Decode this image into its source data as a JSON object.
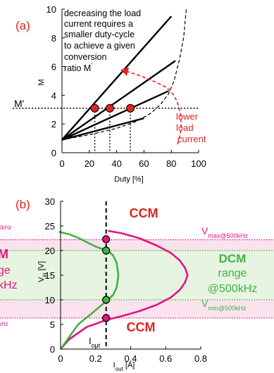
{
  "chart_data": [
    {
      "type": "line",
      "panel_label": "(a)",
      "xlabel": "Duty [%]",
      "ylabel": "M",
      "xlim": [
        0,
        100
      ],
      "ylim": [
        0,
        10
      ],
      "xticks": [
        0,
        20,
        40,
        60,
        80,
        100
      ],
      "yticks": [
        0,
        2,
        4,
        6,
        8,
        10
      ],
      "grid": false,
      "series": [
        {
          "style": "solid",
          "x": [
            0,
            80
          ],
          "y": [
            0.9,
            9.5
          ]
        },
        {
          "style": "solid",
          "x": [
            0,
            83
          ],
          "y": [
            0.9,
            6.4
          ]
        },
        {
          "style": "solid",
          "x": [
            0,
            78
          ],
          "y": [
            0.9,
            4.3
          ]
        },
        {
          "style": "solid",
          "x": [
            0,
            60
          ],
          "y": [
            0.9,
            2.4
          ]
        },
        {
          "style": "dashed",
          "x": [
            0,
            20,
            40,
            55,
            65,
            72,
            78,
            82,
            86,
            89,
            91
          ],
          "y": [
            0.9,
            1.25,
            1.7,
            2.2,
            2.75,
            3.35,
            4.1,
            5.0,
            6.5,
            8.0,
            10
          ]
        }
      ],
      "reference_line": {
        "label": "M'",
        "y": 3.1
      },
      "points": [
        {
          "x": 24,
          "y": 3.1
        },
        {
          "x": 35,
          "y": 3.1
        },
        {
          "x": 50,
          "y": 3.1
        }
      ],
      "annotations": {
        "note_lines": [
          "decreasing the load",
          "current requires a",
          "smaller duty-cycle",
          "to achieve a given",
          "conversion"
        ],
        "note_last_prefix": "ratio M",
        "note_last_suffix": "'",
        "load_lines": [
          "lower",
          "load",
          "current"
        ]
      }
    },
    {
      "type": "line",
      "panel_label": "(b)",
      "xlabel_main": "I",
      "xlabel_sub": "out",
      "xlabel_unit": " [A]",
      "ylabel_main": "V",
      "ylabel_sub": "in",
      "ylabel_unit": " [V]",
      "xlim": [
        0,
        0.8
      ],
      "ylim": [
        0,
        30
      ],
      "xticks": [
        "0",
        "0.2",
        "0.4",
        "0.6",
        "0.8"
      ],
      "yticks": [
        "0",
        "5",
        "10",
        "15",
        "20",
        "25",
        "30"
      ],
      "series": [
        {
          "color": "#e0157f",
          "x": [
            0.27,
            0.35,
            0.45,
            0.55,
            0.63,
            0.68,
            0.71,
            0.725,
            0.71,
            0.68,
            0.63,
            0.55,
            0.45,
            0.35,
            0.27,
            0.15,
            0.05,
            0.0
          ],
          "y": [
            24.0,
            23.5,
            22.5,
            21.0,
            19.5,
            18.0,
            16.5,
            15.0,
            13.5,
            12.0,
            10.5,
            9.0,
            7.7,
            6.7,
            6.0,
            4.5,
            2.0,
            0.0
          ]
        },
        {
          "color": "#3fb43f",
          "x": [
            -0.01,
            0.05,
            0.1,
            0.15,
            0.2,
            0.24,
            0.27,
            0.3,
            0.32,
            0.33,
            0.32,
            0.3,
            0.27,
            0.22,
            0.17,
            0.1,
            0.04,
            0.0
          ],
          "y": [
            23.8,
            23.3,
            22.6,
            21.7,
            20.8,
            20.3,
            20.0,
            19.0,
            17.5,
            15.0,
            12.5,
            11.0,
            10.0,
            8.5,
            7.0,
            5.0,
            2.0,
            0.0
          ]
        }
      ],
      "ccm_bands": [
        {
          "y": [
            22.2,
            23.8
          ]
        },
        {
          "y": [
            6.3,
            10.0
          ]
        }
      ],
      "dcm_band": {
        "y": [
          10.0,
          20.0
        ]
      },
      "current_line_x": 0.26,
      "points": [
        {
          "x": 0.26,
          "y": 22.3,
          "color": "#e0157f"
        },
        {
          "x": 0.26,
          "y": 20.0,
          "color": "#3fb43f"
        },
        {
          "x": 0.26,
          "y": 10.0,
          "color": "#3fb43f"
        },
        {
          "x": 0.26,
          "y": 6.3,
          "color": "#e0157f"
        }
      ],
      "annotations": {
        "ccm_top": "CCM",
        "ccm_bottom": "CCM",
        "vmax_main": "V",
        "vmax_sub": "max@500kHz",
        "vmin_main": "V",
        "vmin_sub": "min@500kHz",
        "dcm_lines": [
          "DCM",
          "range",
          "@500kHz"
        ],
        "left_lines": [
          "0kHz",
          "M",
          "ge",
          "kHz",
          "kHz"
        ],
        "iout_main": "I",
        "iout_sub": "out"
      },
      "colors": {
        "pink": "#e0157f",
        "green": "#3fb43f",
        "pink_band": "#fbe3ee",
        "green_band": "#e8f4e2",
        "red": "#e02424"
      }
    }
  ]
}
